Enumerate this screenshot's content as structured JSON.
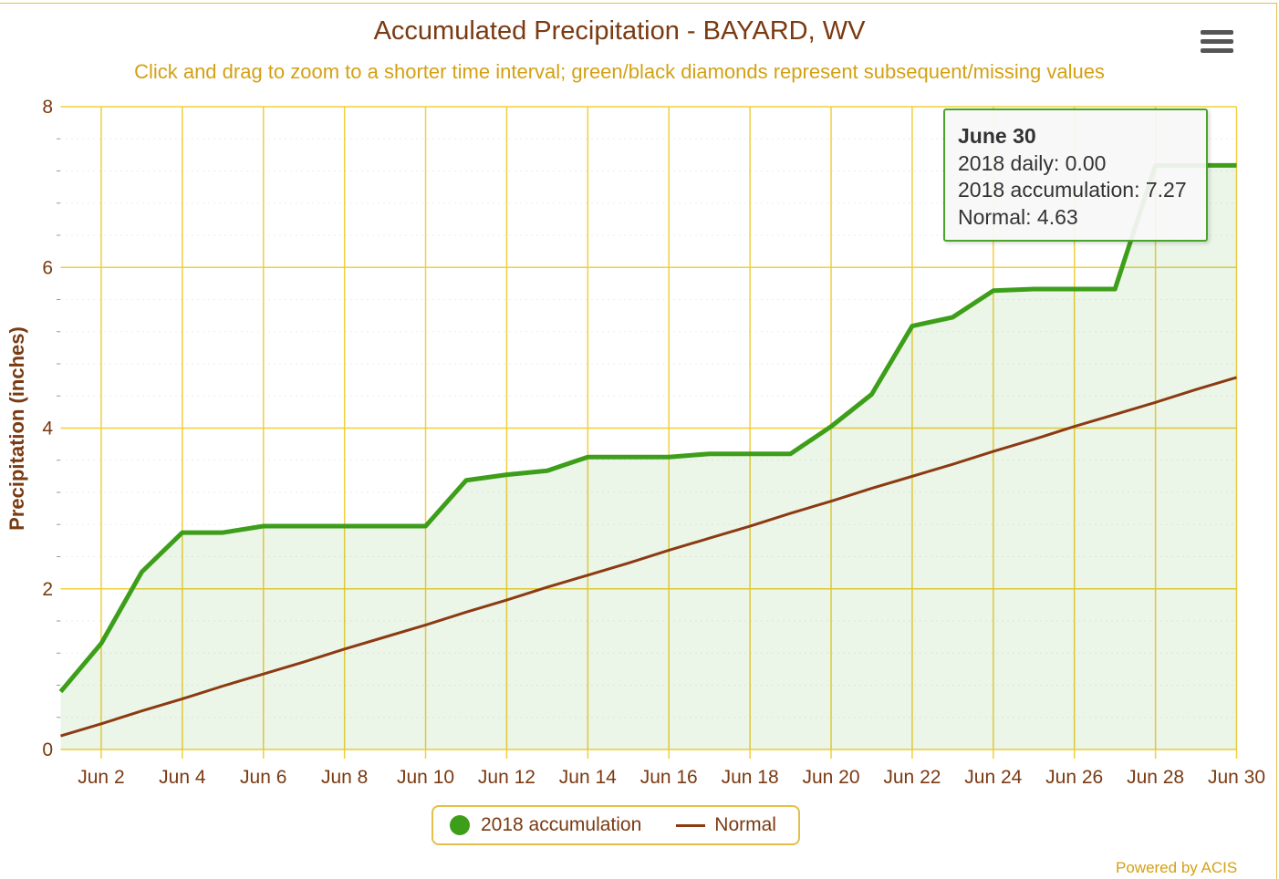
{
  "chart_data": {
    "type": "area",
    "title": "Accumulated Precipitation - BAYARD, WV",
    "subtitle": "Click and drag to zoom to a shorter time interval; green/black diamonds represent subsequent/missing values",
    "xlabel": "",
    "ylabel": "Precipitation (inches)",
    "ylim": [
      0,
      8
    ],
    "yticks": [
      "0",
      "2",
      "4",
      "6",
      "8"
    ],
    "xticks": [
      "Jun 2",
      "Jun 4",
      "Jun 6",
      "Jun 8",
      "Jun 10",
      "Jun 12",
      "Jun 14",
      "Jun 16",
      "Jun 18",
      "Jun 20",
      "Jun 22",
      "Jun 24",
      "Jun 26",
      "Jun 28",
      "Jun 30"
    ],
    "x": [
      1,
      2,
      3,
      4,
      5,
      6,
      7,
      8,
      9,
      10,
      11,
      12,
      13,
      14,
      15,
      16,
      17,
      18,
      19,
      20,
      21,
      22,
      23,
      24,
      25,
      26,
      27,
      28,
      29,
      30
    ],
    "grid": true,
    "legend_position": "bottom-center",
    "series": [
      {
        "name": "2018 accumulation",
        "color": "#3d9e1a",
        "values": [
          0.72,
          1.32,
          2.21,
          2.7,
          2.7,
          2.78,
          2.78,
          2.78,
          2.78,
          2.78,
          3.35,
          3.42,
          3.47,
          3.64,
          3.64,
          3.64,
          3.68,
          3.68,
          3.68,
          4.02,
          4.42,
          5.27,
          5.38,
          5.71,
          5.73,
          5.73,
          5.73,
          7.27,
          7.27,
          7.27
        ]
      },
      {
        "name": "Normal",
        "color": "#8b3a12",
        "values": [
          0.17,
          0.32,
          0.48,
          0.63,
          0.79,
          0.94,
          1.09,
          1.25,
          1.4,
          1.55,
          1.71,
          1.86,
          2.02,
          2.17,
          2.32,
          2.48,
          2.63,
          2.78,
          2.94,
          3.09,
          3.25,
          3.4,
          3.55,
          3.71,
          3.86,
          4.02,
          4.17,
          4.32,
          4.48,
          4.63
        ]
      }
    ]
  },
  "tooltip": {
    "date": "June 30",
    "daily": "2018 daily: 0.00",
    "accumulation": "2018 accumulation: 7.27",
    "normal": "Normal: 4.63"
  },
  "credits": "Powered by ACIS",
  "colors": {
    "grid": "#f0cf3c",
    "green": "#3d9e1a",
    "normal": "#8b3a12",
    "title": "#7a3a12",
    "subtitle": "#d4a014"
  }
}
